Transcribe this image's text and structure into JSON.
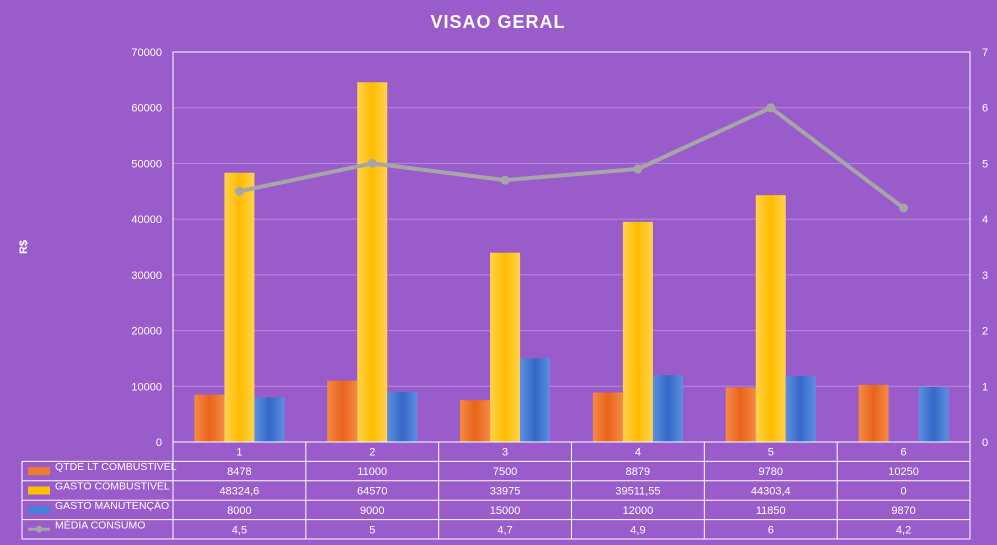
{
  "chart_data": {
    "type": "bar",
    "title": "VISAO GERAL",
    "ylabel": "R$",
    "categories": [
      "1",
      "2",
      "3",
      "4",
      "5",
      "6"
    ],
    "ylim": [
      0,
      70000
    ],
    "y_ticks": [
      "0",
      "10000",
      "20000",
      "30000",
      "40000",
      "50000",
      "60000",
      "70000"
    ],
    "y2lim": [
      0,
      7
    ],
    "y2_ticks": [
      "0",
      "1",
      "2",
      "3",
      "4",
      "5",
      "6",
      "7"
    ],
    "grid": true,
    "series": [
      {
        "name": "QTDE LT COMBUSTIVEL",
        "kind": "bar",
        "axis": "primary",
        "color": "#f07a2e",
        "values": [
          8478,
          11000,
          7500,
          8879,
          9780,
          10250
        ],
        "display": [
          "8478",
          "11000",
          "7500",
          "8879",
          "9780",
          "10250"
        ]
      },
      {
        "name": "GASTO COMBUSTIVEL",
        "kind": "bar",
        "axis": "primary",
        "color": "#ffc000",
        "values": [
          48324.6,
          64570,
          33975,
          39511.55,
          44303.4,
          0
        ],
        "display": [
          "48324,6",
          "64570",
          "33975",
          "39511,55",
          "44303,4",
          "0"
        ]
      },
      {
        "name": "GASTO MANUTENÇÃO",
        "kind": "bar",
        "axis": "primary",
        "color": "#4a7fd6",
        "values": [
          8000,
          9000,
          15000,
          12000,
          11850,
          9870
        ],
        "display": [
          "8000",
          "9000",
          "15000",
          "12000",
          "11850",
          "9870"
        ]
      },
      {
        "name": "MÉDIA CONSUMO",
        "kind": "line",
        "axis": "secondary",
        "color": "#a6a6a6",
        "values": [
          4.5,
          5,
          4.7,
          4.9,
          6,
          4.2
        ],
        "display": [
          "4,5",
          "5",
          "4,7",
          "4,9",
          "6",
          "4,2"
        ]
      }
    ]
  }
}
